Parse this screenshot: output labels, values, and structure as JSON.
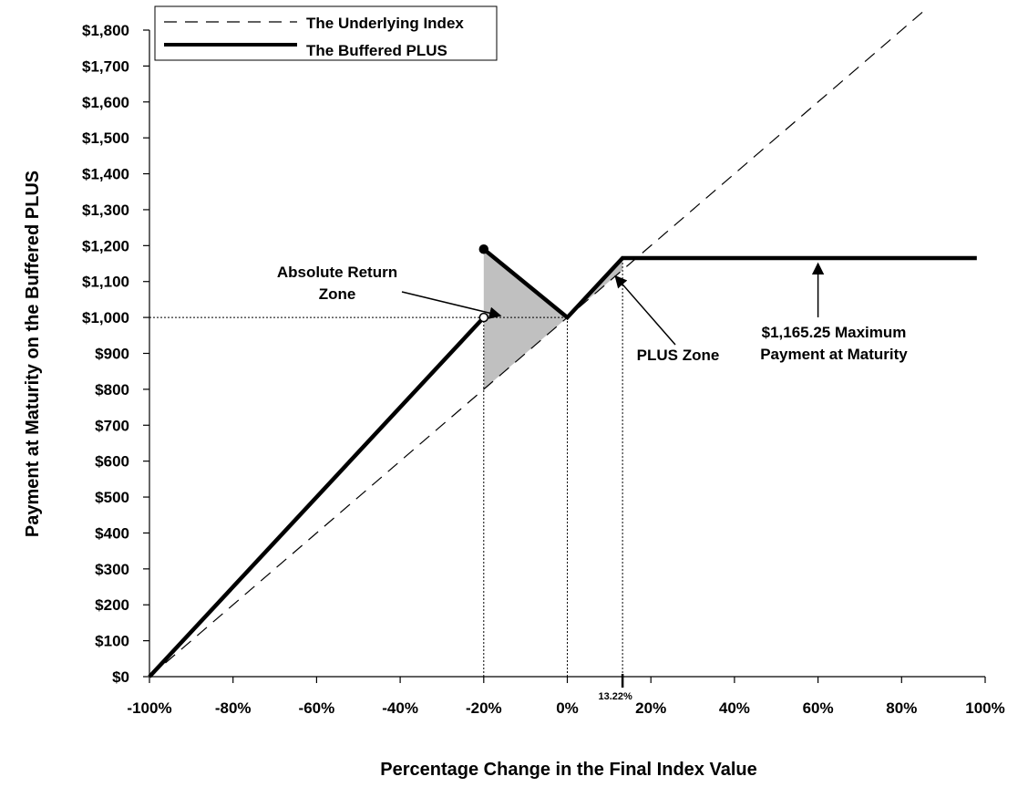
{
  "chart_data": {
    "type": "line",
    "xlabel": "Percentage Change in the Final Index Value",
    "ylabel": "Payment at Maturity on the Buffered PLUS",
    "xlim": [
      -100,
      100
    ],
    "ylim": [
      0,
      1800
    ],
    "x_ticks": [
      {
        "value": -100,
        "label": "-100%"
      },
      {
        "value": -80,
        "label": "-80%"
      },
      {
        "value": -60,
        "label": "-60%"
      },
      {
        "value": -40,
        "label": "-40%"
      },
      {
        "value": -20,
        "label": "-20%"
      },
      {
        "value": 0,
        "label": "0%"
      },
      {
        "value": 20,
        "label": "20%"
      },
      {
        "value": 40,
        "label": "40%"
      },
      {
        "value": 60,
        "label": "60%"
      },
      {
        "value": 80,
        "label": "80%"
      },
      {
        "value": 100,
        "label": "100%"
      }
    ],
    "y_ticks": [
      {
        "value": 0,
        "label": "$0"
      },
      {
        "value": 100,
        "label": "$100"
      },
      {
        "value": 200,
        "label": "$200"
      },
      {
        "value": 300,
        "label": "$300"
      },
      {
        "value": 400,
        "label": "$400"
      },
      {
        "value": 500,
        "label": "$500"
      },
      {
        "value": 600,
        "label": "$600"
      },
      {
        "value": 700,
        "label": "$700"
      },
      {
        "value": 800,
        "label": "$800"
      },
      {
        "value": 900,
        "label": "$900"
      },
      {
        "value": 1000,
        "label": "$1,000"
      },
      {
        "value": 1100,
        "label": "$1,100"
      },
      {
        "value": 1200,
        "label": "$1,200"
      },
      {
        "value": 1300,
        "label": "$1,300"
      },
      {
        "value": 1400,
        "label": "$1,400"
      },
      {
        "value": 1500,
        "label": "$1,500"
      },
      {
        "value": 1600,
        "label": "$1,600"
      },
      {
        "value": 1700,
        "label": "$1,700"
      },
      {
        "value": 1800,
        "label": "$1,800"
      }
    ],
    "series": [
      {
        "name": "The Underlying Index",
        "style": "dashed",
        "x": [
          -100,
          85
        ],
        "y": [
          0,
          1850
        ]
      },
      {
        "name": "The Buffered PLUS",
        "style": "solid",
        "segments": [
          {
            "x": [
              -100,
              -20
            ],
            "y": [
              0,
              1000
            ]
          },
          {
            "x": [
              -20,
              0,
              13.22,
              98
            ],
            "y": [
              1190,
              1000,
              1165.25,
              1165.25
            ]
          }
        ]
      }
    ],
    "markers": [
      {
        "x": -20,
        "y": 1000,
        "type": "open-circle"
      },
      {
        "x": -20,
        "y": 1190,
        "type": "filled-circle"
      }
    ],
    "shaded_regions": [
      {
        "name": "absolute-return-zone",
        "points": [
          [
            -20,
            1190
          ],
          [
            0,
            1000
          ],
          [
            -20,
            800
          ]
        ]
      },
      {
        "name": "plus-zone",
        "points": [
          [
            0,
            1000
          ],
          [
            13.22,
            1165.25
          ],
          [
            13.22,
            1132.2
          ]
        ]
      }
    ],
    "reference_lines": [
      {
        "type": "horizontal",
        "y": 1000,
        "x_from": -100,
        "x_to": 0
      },
      {
        "type": "vertical",
        "x": -20,
        "y_from": 0,
        "y_to": 1000
      },
      {
        "type": "vertical",
        "x": 0,
        "y_from": 0,
        "y_to": 1000
      },
      {
        "type": "vertical",
        "x": 13.22,
        "y_from": 0,
        "y_to": 1165.25
      }
    ],
    "special_tick": {
      "value": 13.22,
      "label": "13.22%"
    },
    "annotations": [
      {
        "name": "absolute-return-zone",
        "lines": [
          "Absolute Return",
          "Zone"
        ],
        "arrow_to": [
          -16,
          1005
        ]
      },
      {
        "name": "plus-zone",
        "lines": [
          "PLUS Zone"
        ],
        "arrow_to": [
          11.5,
          1115
        ]
      },
      {
        "name": "max-payment",
        "lines": [
          "$1,165.25 Maximum",
          "Payment at Maturity"
        ],
        "arrow_to": [
          60,
          1150
        ]
      }
    ],
    "legend": {
      "position": "top-left",
      "entries": [
        {
          "label": "The Underlying Index",
          "style": "dashed"
        },
        {
          "label": "The Buffered PLUS",
          "style": "solid"
        }
      ]
    },
    "colors": {
      "line": "#000000",
      "shade": "#c0c0c0"
    }
  }
}
